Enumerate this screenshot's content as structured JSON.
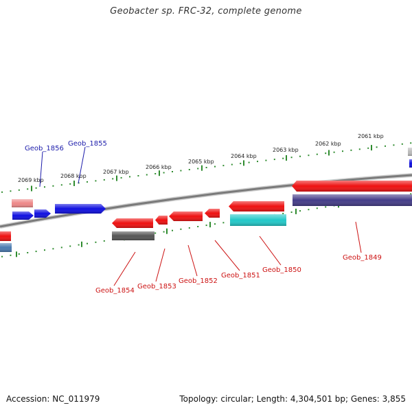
{
  "header": {
    "title": "Geobacter sp. FRC-32, complete genome"
  },
  "footer": {
    "accession": "Accession: NC_011979",
    "summary": "Topology: circular; Length: 4,304,501 bp; Genes: 3,855"
  },
  "colors": {
    "backbone": "#7a7a7a",
    "tick": "#2e8b2e",
    "label_forward": "#1a1aaa",
    "label_reverse": "#cc1111",
    "gene_blue": "#1010e0",
    "gene_red": "#ee1111",
    "gene_pink": "#ee8888",
    "gene_gray": "#555555",
    "gene_cyan": "#22c8c8",
    "gene_purple": "#443c88",
    "gene_steel": "#4a7ab0"
  },
  "ticks": [
    {
      "label": "2061 kbp"
    },
    {
      "label": "2062 kbp"
    },
    {
      "label": "2063 kbp"
    },
    {
      "label": "2064 kbp"
    },
    {
      "label": "2065 kbp"
    },
    {
      "label": "2066 kbp"
    },
    {
      "label": "2067 kbp"
    },
    {
      "label": "2068 kbp"
    },
    {
      "label": "2069 kbp"
    }
  ],
  "gene_labels": [
    {
      "name": "Geob_1856",
      "strand": "forward"
    },
    {
      "name": "Geob_1855",
      "strand": "forward"
    },
    {
      "name": "Geob_1854",
      "strand": "reverse"
    },
    {
      "name": "Geob_1853",
      "strand": "reverse"
    },
    {
      "name": "Geob_1852",
      "strand": "reverse"
    },
    {
      "name": "Geob_1851",
      "strand": "reverse"
    },
    {
      "name": "Geob_1850",
      "strand": "reverse"
    },
    {
      "name": "Geob_1849",
      "strand": "reverse"
    }
  ]
}
